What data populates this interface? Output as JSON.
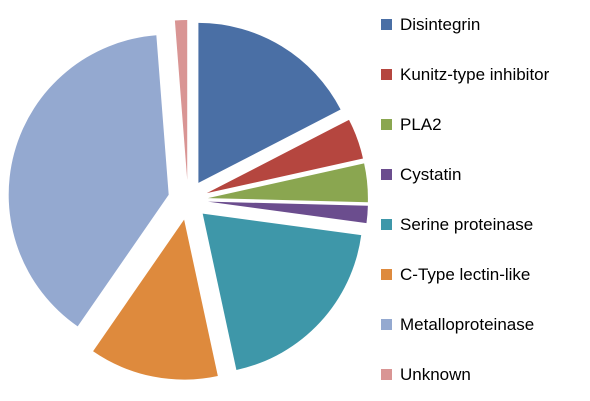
{
  "chart_data": {
    "type": "pie",
    "title": "",
    "exploded": true,
    "legend_position": "right",
    "categories": [
      "Disintegrin",
      "Kunitz-type inhibitor",
      "PLA2",
      "Cystatin",
      "Serine proteinase",
      "C-Type lectin-like",
      "Metalloproteinase",
      "Unknown"
    ],
    "values": [
      17,
      4,
      3.8,
      1.7,
      19,
      12.7,
      38.2,
      1.2
    ],
    "colors": [
      "#4A6FA5",
      "#B5463F",
      "#8AA650",
      "#6B4D8E",
      "#3E97A9",
      "#DE8A3D",
      "#94A9D0",
      "#D99594"
    ]
  }
}
